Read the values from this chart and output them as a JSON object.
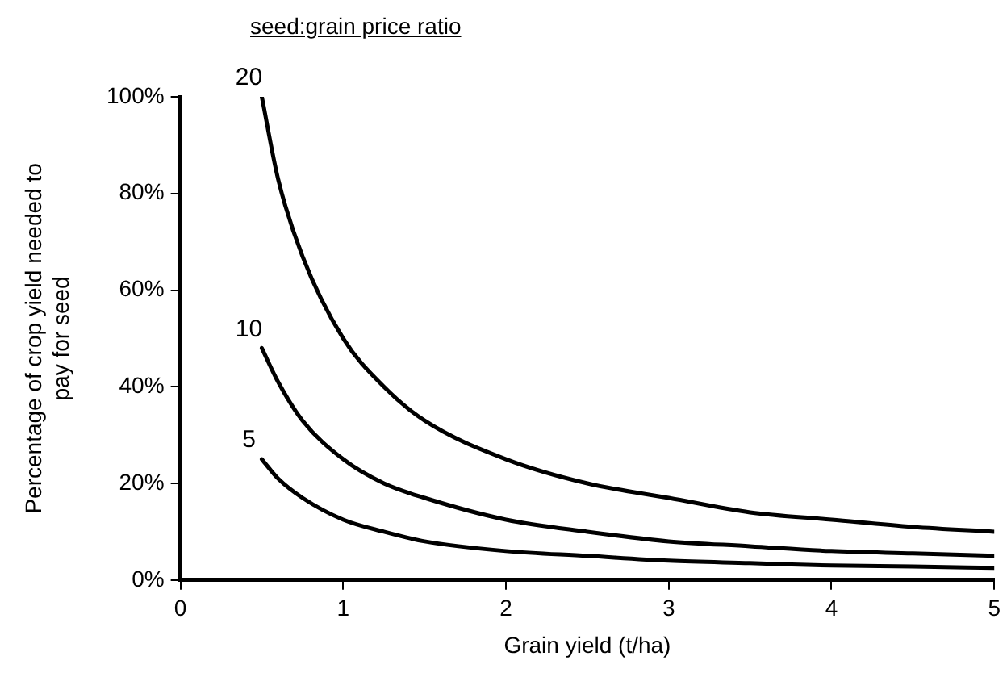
{
  "chart_data": {
    "type": "line",
    "legend_title": "seed:grain price ratio",
    "xlabel": "Grain yield (t/ha)",
    "ylabel": "Percentage of crop yield needed to pay for seed",
    "x": [
      0.5,
      0.6,
      0.75,
      1,
      1.25,
      1.5,
      2,
      2.5,
      3,
      3.5,
      4,
      4.5,
      5
    ],
    "series": [
      {
        "name": "20",
        "color": "#000000",
        "values": [
          100,
          83,
          67,
          50,
          40,
          33,
          25,
          20,
          17,
          14,
          12.5,
          11,
          10
        ]
      },
      {
        "name": "10",
        "color": "#000000",
        "values": [
          48,
          41,
          33,
          25,
          20,
          17,
          12.5,
          10,
          8,
          7,
          6,
          5.5,
          5
        ]
      },
      {
        "name": "5",
        "color": "#000000",
        "values": [
          25,
          21,
          17,
          12.5,
          10,
          8,
          6,
          5,
          4,
          3.5,
          3,
          2.8,
          2.5
        ]
      }
    ],
    "xlim": [
      0,
      5
    ],
    "xticks": [
      0,
      1,
      2,
      3,
      4,
      5
    ],
    "ylim": [
      0,
      100
    ],
    "yticks": [
      {
        "value": 0,
        "label": "0%"
      },
      {
        "value": 20,
        "label": "20%"
      },
      {
        "value": 40,
        "label": "40%"
      },
      {
        "value": 60,
        "label": "60%"
      },
      {
        "value": 80,
        "label": "80%"
      },
      {
        "value": 100,
        "label": "100%"
      }
    ],
    "grid": false,
    "legend": false,
    "marker": "none",
    "line_style": "solid"
  }
}
